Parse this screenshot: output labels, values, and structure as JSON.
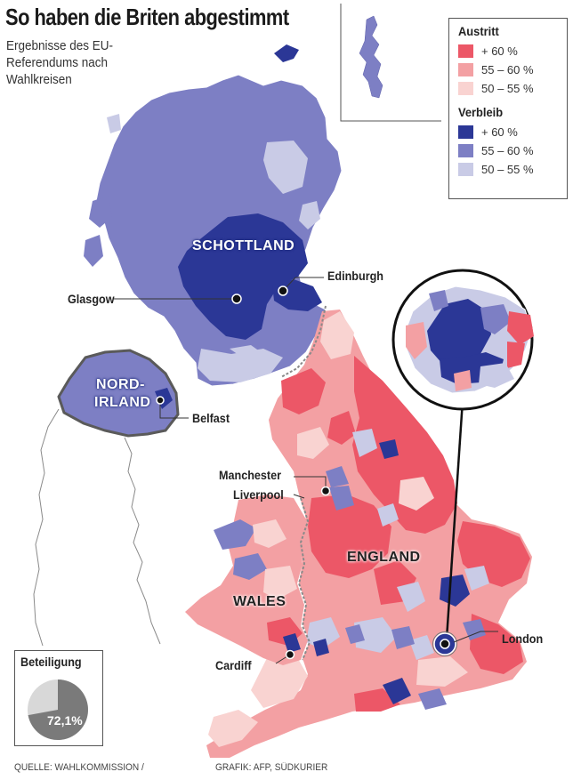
{
  "title": "So haben die Briten abgestimmt",
  "subtitle": "Ergebnisse des EU-Referendums nach Wahlkreisen",
  "legend": {
    "leave_heading": "Austritt",
    "remain_heading": "Verbleib",
    "leave": [
      {
        "label": "+ 60 %",
        "color": "#ec5767"
      },
      {
        "label": "55 – 60 %",
        "color": "#f3a0a3"
      },
      {
        "label": "50 – 55 %",
        "color": "#f9d3d1"
      }
    ],
    "remain": [
      {
        "label": "+ 60 %",
        "color": "#2b3796"
      },
      {
        "label": "55 – 60 %",
        "color": "#7d7fc4"
      },
      {
        "label": "50 – 55 %",
        "color": "#c9cbe6"
      }
    ]
  },
  "regions": {
    "scotland": "SCHOTTLAND",
    "northern_ireland_line1": "NORD-",
    "northern_ireland_line2": "IRLAND",
    "england": "ENGLAND",
    "wales": "WALES"
  },
  "cities": {
    "glasgow": "Glasgow",
    "edinburgh": "Edinburgh",
    "belfast": "Belfast",
    "manchester": "Manchester",
    "liverpool": "Liverpool",
    "cardiff": "Cardiff",
    "london": "London"
  },
  "turnout": {
    "label": "Beteiligung",
    "value_text": "72,1%",
    "value": 72.1
  },
  "footer": {
    "source": "QUELLE: WAHLKOMMISSION /",
    "credit": "GRAFIK: AFP, SÜDKURIER"
  }
}
